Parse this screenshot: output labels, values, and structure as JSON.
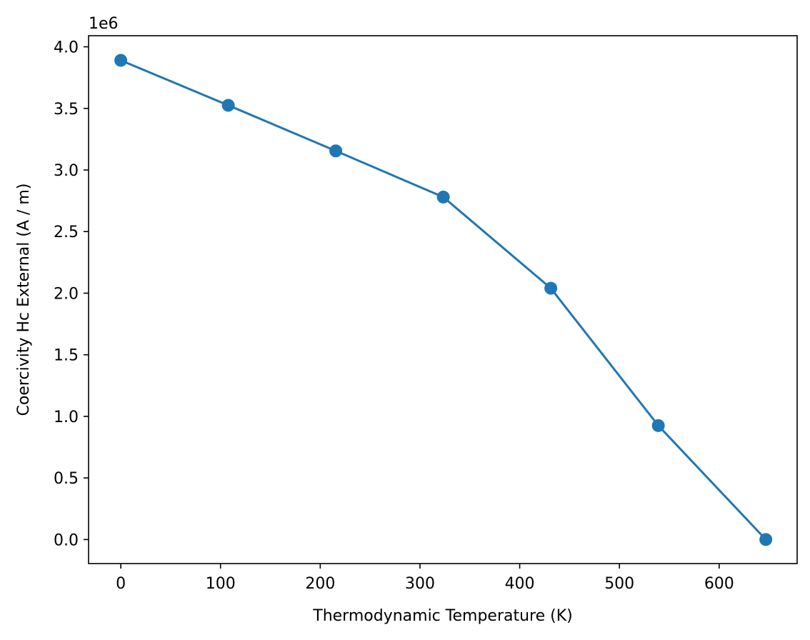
{
  "chart_data": {
    "type": "line",
    "title": "",
    "xlabel": "Thermodynamic Temperature (K)",
    "ylabel": "Coercivity Hc External (A / m)",
    "y_offset_label": "1e6",
    "xlim": [
      -32.3,
      678.2
    ],
    "ylim": [
      -0.195,
      4.09
    ],
    "x_ticks": [
      0,
      100,
      200,
      300,
      400,
      500,
      600
    ],
    "x_tick_labels": [
      "0",
      "100",
      "200",
      "300",
      "400",
      "500",
      "600"
    ],
    "y_ticks": [
      0.0,
      0.5,
      1.0,
      1.5,
      2.0,
      2.5,
      3.0,
      3.5,
      4.0
    ],
    "y_tick_labels": [
      "0.0",
      "0.5",
      "1.0",
      "1.5",
      "2.0",
      "2.5",
      "3.0",
      "3.5",
      "4.0"
    ],
    "grid": false,
    "series": [
      {
        "color": "#1f77b4",
        "marker": "circle",
        "x": [
          0,
          107.8,
          215.6,
          323.4,
          431.2,
          539.0,
          646.8
        ],
        "y": [
          3.89,
          3.525,
          3.155,
          2.78,
          2.04,
          0.925,
          0.0
        ]
      }
    ]
  }
}
